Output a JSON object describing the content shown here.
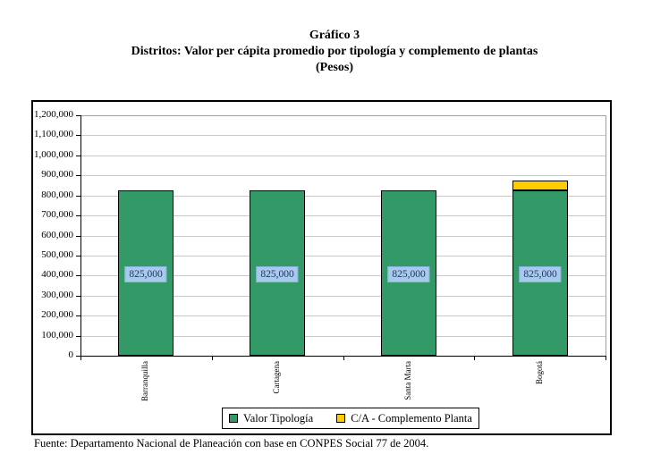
{
  "footer": {
    "source": "Fuente: Departamento Nacional de Planeación con base en CONPES Social 77 de 2004."
  },
  "chart_data": {
    "type": "bar",
    "stacked": true,
    "title": "Gráfico 3",
    "subtitle": "Distritos: Valor per cápita promedio por tipología y complemento de plantas",
    "units": "(Pesos)",
    "categories": [
      "Barranquilla",
      "Cartagena",
      "Santa Marta",
      "Bogotá"
    ],
    "series": [
      {
        "name": "Valor Tipología",
        "color": "#339966",
        "values": [
          825000,
          825000,
          825000,
          825000
        ]
      },
      {
        "name": "C/A - Complemento Planta",
        "color": "#FFCC00",
        "values": [
          0,
          0,
          0,
          50000
        ]
      }
    ],
    "bar_labels": [
      "825,000",
      "825,000",
      "825,000",
      "825,000"
    ],
    "ylim": [
      0,
      1200000
    ],
    "ytick_step": 100000,
    "ytick_labels": [
      "0",
      "100,000",
      "200,000",
      "300,000",
      "400,000",
      "500,000",
      "600,000",
      "700,000",
      "800,000",
      "900,000",
      "1,000,000",
      "1,100,000",
      "1,200,000"
    ],
    "grid": true,
    "legend_position": "bottom-inside",
    "label_position_value": 405000,
    "colors": {
      "bar_border": "#000000",
      "gridline": "#c9c9c9",
      "plot_border": "#a0a0a0",
      "axis": "#000000",
      "label_bg": "#a6c9ec",
      "label_border": "#8fb6e0",
      "label_text": "#1f3864"
    }
  }
}
